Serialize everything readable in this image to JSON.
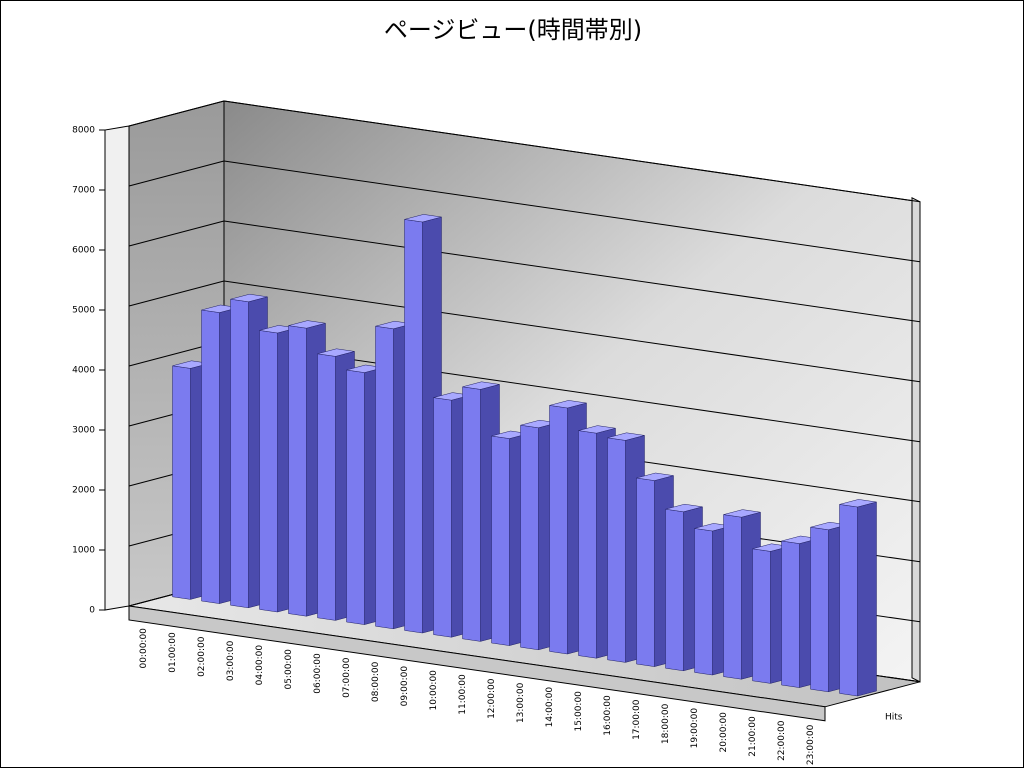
{
  "chart_data": {
    "type": "bar3d",
    "title": "ページビュー(時間帯別)",
    "categories": [
      "00:00:00",
      "01:00:00",
      "02:00:00",
      "03:00:00",
      "04:00:00",
      "05:00:00",
      "06:00:00",
      "07:00:00",
      "08:00:00",
      "09:00:00",
      "10:00:00",
      "11:00:00",
      "12:00:00",
      "13:00:00",
      "14:00:00",
      "15:00:00",
      "16:00:00",
      "17:00:00",
      "18:00:00",
      "19:00:00",
      "20:00:00",
      "21:00:00",
      "22:00:00",
      "23:00:00"
    ],
    "series": [
      {
        "name": "Hits",
        "color": "#7b7bef",
        "values": [
          3850,
          4850,
          5100,
          4650,
          4800,
          4400,
          4200,
          5000,
          6850,
          3950,
          4200,
          3450,
          3700,
          4100,
          3750,
          3700,
          3100,
          2650,
          2400,
          2700,
          2200,
          2400,
          2700,
          3150
        ]
      }
    ],
    "ylim": [
      0,
      8000
    ],
    "yticks": [
      0,
      1000,
      2000,
      3000,
      4000,
      5000,
      6000,
      7000,
      8000
    ],
    "grid": true
  }
}
